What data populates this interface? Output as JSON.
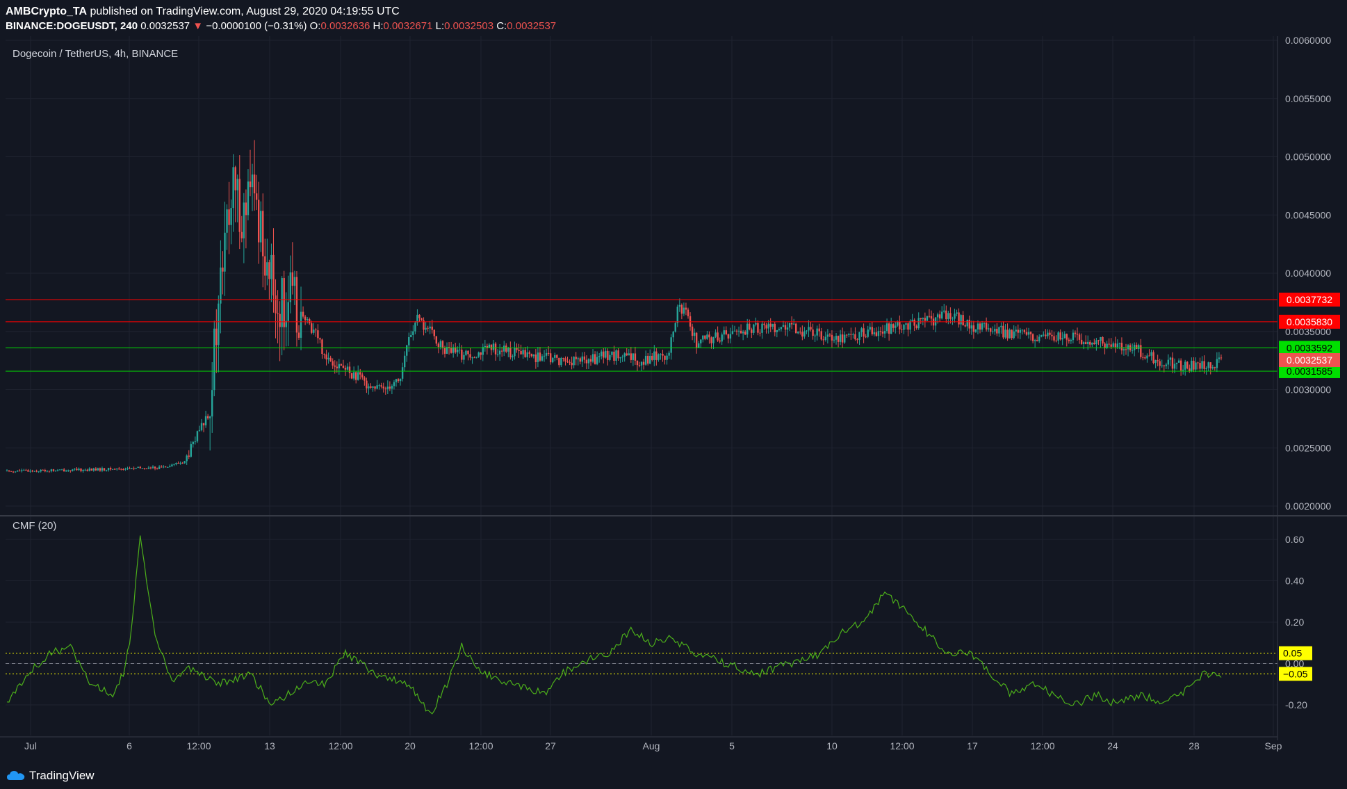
{
  "header": {
    "publisher": "AMBCrypto_TA",
    "published_text": "published on TradingView.com, August 29, 2020 04:19:55 UTC",
    "symbol": "BINANCE:DOGEUSDT, 240",
    "last": "0.0032537",
    "change": "−0.0000100 (−0.31%)",
    "o_label": "O:",
    "o_value": "0.0032636",
    "h_label": "H:",
    "h_value": "0.0032671",
    "l_label": "L:",
    "l_value": "0.0032503",
    "c_label": "C:",
    "c_value": "0.0032537"
  },
  "footer": {
    "brand": "TradingView"
  },
  "colors": {
    "background": "#131722",
    "up": "#26a69a",
    "down": "#ef5350",
    "resistance": "#ff0000",
    "support": "#00e000",
    "cmf": "#4caf1a",
    "band": "#ffff00",
    "grid": "#1f2330",
    "axis_text": "#b2b5be"
  },
  "chart_data": [
    {
      "type": "candlestick",
      "title": "Dogecoin / TetherUS, 4h, BINANCE",
      "x_tick_labels": [
        "Jul",
        "6",
        "12:00",
        "13",
        "12:00",
        "20",
        "12:00",
        "27",
        "Aug",
        "5",
        "10",
        "12:00",
        "17",
        "12:00",
        "24",
        "28",
        "Sep"
      ],
      "y_tick_labels": [
        "0.0060000",
        "0.0055000",
        "0.0050000",
        "0.0045000",
        "0.0040000",
        "0.0035000",
        "0.0030000",
        "0.0025000",
        "0.0020000"
      ],
      "ylim": [
        0.002,
        0.006
      ],
      "horizontal_levels": [
        {
          "value": 0.0037732,
          "label": "0.0037732",
          "kind": "resistance"
        },
        {
          "value": 0.003583,
          "label": "0.0035830",
          "kind": "resistance"
        },
        {
          "value": 0.0033592,
          "label": "0.0033592",
          "kind": "support"
        },
        {
          "value": 0.0031585,
          "label": "0.0031585",
          "kind": "support"
        }
      ],
      "last_price_label": "0.0032537",
      "price_path": [
        [
          0,
          0.0023
        ],
        [
          35,
          0.00231
        ],
        [
          72,
          0.00233
        ],
        [
          84,
          0.00238
        ],
        [
          90,
          0.0026
        ],
        [
          95,
          0.0028
        ],
        [
          98,
          0.0033
        ],
        [
          101,
          0.0039
        ],
        [
          104,
          0.0044
        ],
        [
          107,
          0.0047
        ],
        [
          112,
          0.0045
        ],
        [
          116,
          0.0047
        ],
        [
          120,
          0.0044
        ],
        [
          124,
          0.004
        ],
        [
          128,
          0.0037
        ],
        [
          134,
          0.0038
        ],
        [
          140,
          0.0036
        ],
        [
          146,
          0.0035
        ],
        [
          150,
          0.0033
        ],
        [
          158,
          0.0032
        ],
        [
          166,
          0.0031
        ],
        [
          176,
          0.003
        ],
        [
          186,
          0.0031
        ],
        [
          190,
          0.00345
        ],
        [
          194,
          0.0036
        ],
        [
          200,
          0.0035
        ],
        [
          206,
          0.00335
        ],
        [
          215,
          0.0033
        ],
        [
          230,
          0.00335
        ],
        [
          245,
          0.0033
        ],
        [
          262,
          0.00325
        ],
        [
          275,
          0.00325
        ],
        [
          284,
          0.0033
        ],
        [
          300,
          0.00325
        ],
        [
          308,
          0.0033
        ],
        [
          313,
          0.0033
        ],
        [
          317,
          0.0037
        ],
        [
          321,
          0.00365
        ],
        [
          326,
          0.0034
        ],
        [
          335,
          0.00345
        ],
        [
          345,
          0.0035
        ],
        [
          360,
          0.00355
        ],
        [
          378,
          0.0035
        ],
        [
          395,
          0.00345
        ],
        [
          410,
          0.0035
        ],
        [
          425,
          0.00355
        ],
        [
          438,
          0.0036
        ],
        [
          446,
          0.00365
        ],
        [
          455,
          0.00355
        ],
        [
          470,
          0.0035
        ],
        [
          485,
          0.00345
        ],
        [
          505,
          0.00345
        ],
        [
          520,
          0.0034
        ],
        [
          533,
          0.00335
        ],
        [
          545,
          0.00325
        ],
        [
          555,
          0.0032
        ],
        [
          565,
          0.0032
        ],
        [
          575,
          0.00325
        ]
      ]
    },
    {
      "type": "line",
      "title": "CMF (20)",
      "ylim": [
        -0.28,
        0.66
      ],
      "y_tick_labels": [
        "0.60",
        "0.40",
        "0.20",
        "0.00",
        "-0.20"
      ],
      "bands": [
        {
          "value": 0.05,
          "label": "0.05"
        },
        {
          "value": -0.05,
          "label": "−0.05"
        }
      ],
      "path": [
        [
          0,
          -0.2
        ],
        [
          10,
          -0.05
        ],
        [
          20,
          0.05
        ],
        [
          30,
          0.08
        ],
        [
          40,
          -0.1
        ],
        [
          50,
          -0.15
        ],
        [
          55,
          -0.05
        ],
        [
          58,
          0.1
        ],
        [
          63,
          0.6
        ],
        [
          70,
          0.15
        ],
        [
          78,
          -0.1
        ],
        [
          85,
          -0.02
        ],
        [
          100,
          -0.1
        ],
        [
          115,
          -0.05
        ],
        [
          125,
          -0.2
        ],
        [
          140,
          -0.1
        ],
        [
          150,
          -0.1
        ],
        [
          160,
          0.05
        ],
        [
          175,
          -0.05
        ],
        [
          190,
          -0.1
        ],
        [
          200,
          -0.25
        ],
        [
          208,
          -0.1
        ],
        [
          215,
          0.08
        ],
        [
          225,
          -0.05
        ],
        [
          240,
          -0.1
        ],
        [
          255,
          -0.15
        ],
        [
          262,
          -0.05
        ],
        [
          270,
          0.0
        ],
        [
          285,
          0.05
        ],
        [
          295,
          0.17
        ],
        [
          305,
          0.1
        ],
        [
          315,
          0.12
        ],
        [
          325,
          0.05
        ],
        [
          340,
          0.0
        ],
        [
          355,
          -0.05
        ],
        [
          370,
          0.0
        ],
        [
          385,
          0.05
        ],
        [
          395,
          0.15
        ],
        [
          405,
          0.2
        ],
        [
          415,
          0.35
        ],
        [
          425,
          0.25
        ],
        [
          435,
          0.15
        ],
        [
          445,
          0.05
        ],
        [
          455,
          0.05
        ],
        [
          465,
          -0.05
        ],
        [
          475,
          -0.15
        ],
        [
          485,
          -0.1
        ],
        [
          495,
          -0.15
        ],
        [
          505,
          -0.2
        ],
        [
          515,
          -0.15
        ],
        [
          525,
          -0.2
        ],
        [
          535,
          -0.15
        ],
        [
          545,
          -0.18
        ],
        [
          555,
          -0.15
        ],
        [
          565,
          -0.05
        ],
        [
          575,
          -0.05
        ]
      ]
    }
  ]
}
